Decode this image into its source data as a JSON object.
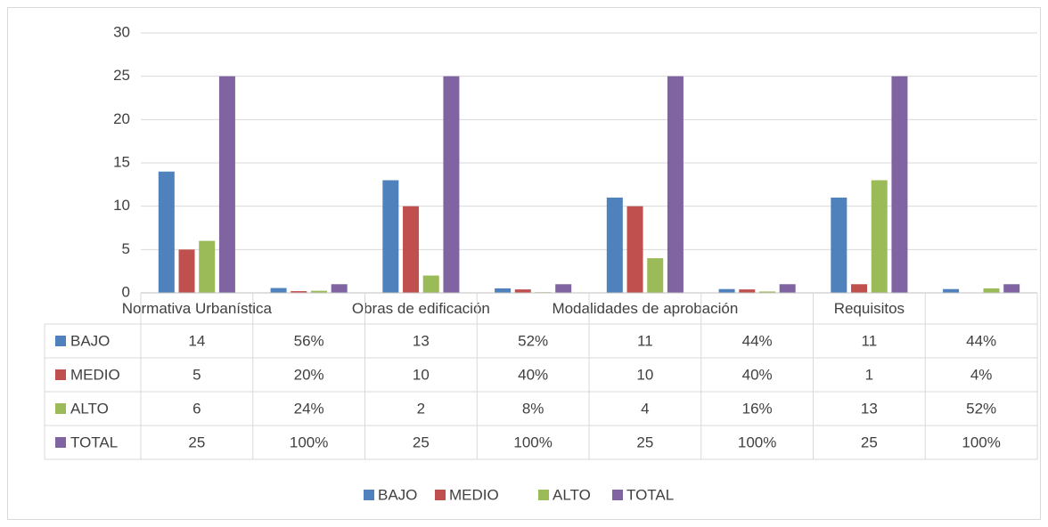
{
  "chart_data": {
    "type": "bar",
    "categories": [
      "Normativa Urbanística",
      null,
      "Obras de edificación",
      null,
      "Modalidades de aprobación",
      null,
      "Requisitos",
      null
    ],
    "series": [
      {
        "name": "BAJO",
        "color": "#4f81bd",
        "values": [
          14,
          0.56,
          13,
          0.52,
          11,
          0.44,
          11,
          0.44
        ],
        "value_labels": [
          "14",
          "56%",
          "13",
          "52%",
          "11",
          "44%",
          "11",
          "44%"
        ]
      },
      {
        "name": "MEDIO",
        "color": "#c0504d",
        "values": [
          5,
          0.2,
          10,
          0.4,
          10,
          0.4,
          1,
          0.04
        ],
        "value_labels": [
          "5",
          "20%",
          "10",
          "40%",
          "10",
          "40%",
          "1",
          "4%"
        ]
      },
      {
        "name": "ALTO",
        "color": "#9bbb59",
        "values": [
          6,
          0.24,
          2,
          0.08,
          4,
          0.16,
          13,
          0.52
        ],
        "value_labels": [
          "6",
          "24%",
          "2",
          "8%",
          "4",
          "16%",
          "13",
          "52%"
        ]
      },
      {
        "name": "TOTAL",
        "color": "#8064a2",
        "values": [
          25,
          1,
          25,
          1,
          25,
          1,
          25,
          1
        ],
        "value_labels": [
          "25",
          "100%",
          "25",
          "100%",
          "25",
          "100%",
          "25",
          "100%"
        ]
      }
    ],
    "ylim": [
      0,
      30
    ],
    "yticks": [
      0,
      5,
      10,
      15,
      20,
      25,
      30
    ],
    "grid": true,
    "legend": "bottom",
    "data_table": true
  }
}
